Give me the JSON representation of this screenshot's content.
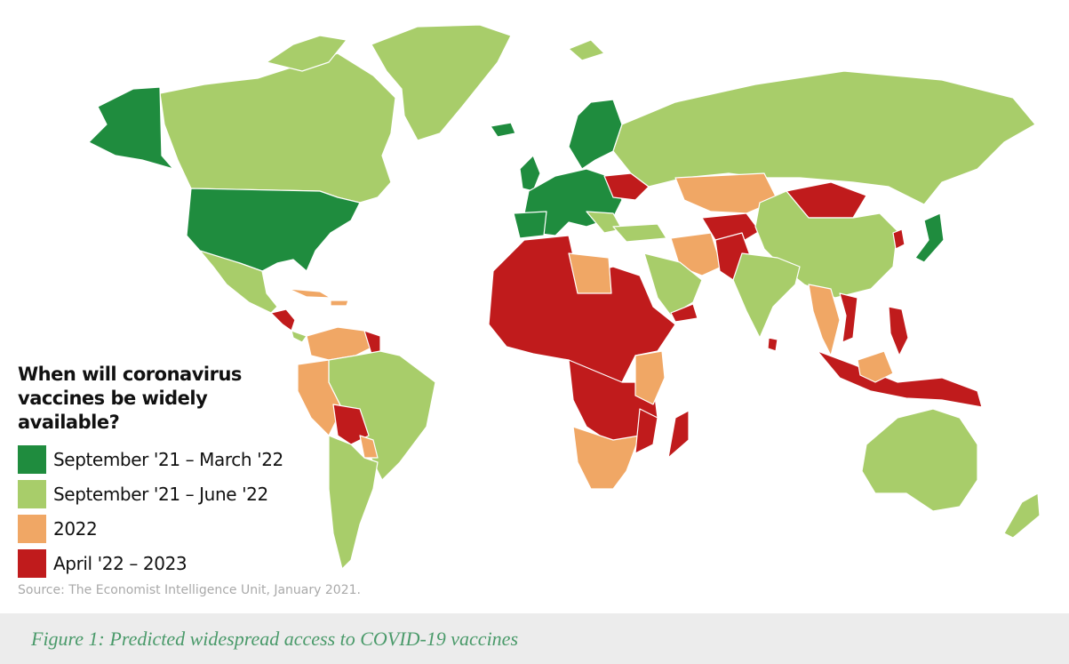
{
  "legend": {
    "title_line1": "When will coronavirus",
    "title_line2": "vaccines be widely available?",
    "items": [
      {
        "label": "September '21 – March '22",
        "color": "#1f8c3e"
      },
      {
        "label": "September '21 – June '22",
        "color": "#a8cd6a"
      },
      {
        "label": "2022",
        "color": "#f0a765"
      },
      {
        "label": "April '22 – 2023",
        "color": "#c01b1c"
      }
    ]
  },
  "source": "Source: The Economist Intelligence Unit, January 2021.",
  "caption": "Figure 1: Predicted widespread access to COVID-19 vaccines",
  "colors": {
    "early": "#1f8c3e",
    "mid": "#a8cd6a",
    "y2022": "#f0a765",
    "late": "#c01b1c",
    "ocean": "#ffffff",
    "border": "#ffffff"
  }
}
